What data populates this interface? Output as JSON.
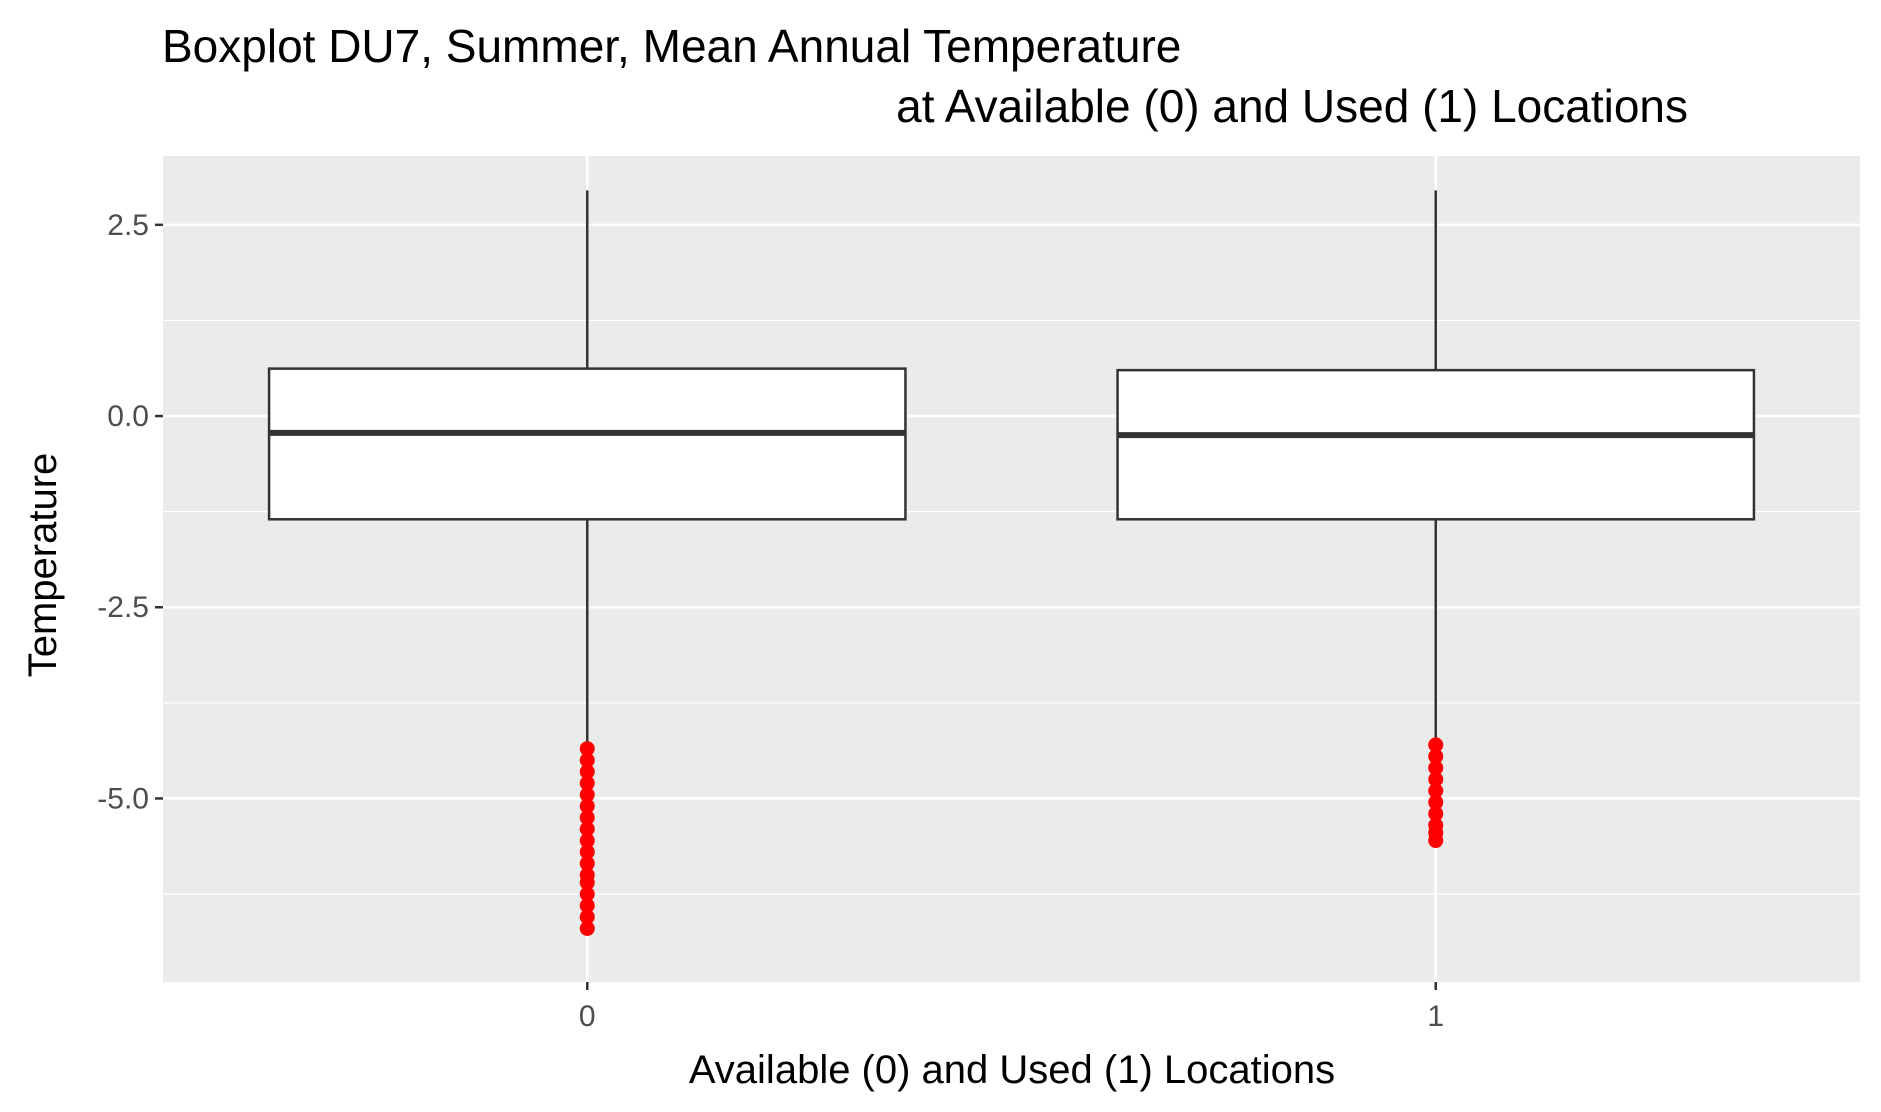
{
  "chart_data": {
    "type": "boxplot",
    "title_line1": "Boxplot DU7, Summer, Mean Annual Temperature",
    "title_line2": "at Available (0) and Used (1) Locations",
    "xlabel": "Available (0) and Used (1) Locations",
    "ylabel": "Temperature",
    "categories": [
      "0",
      "1"
    ],
    "ylim": [
      -7.4,
      3.4
    ],
    "yticks": [
      -5.0,
      -2.5,
      0.0,
      2.5
    ],
    "ytick_labels": [
      "-5.0",
      "-2.5",
      "0.0",
      "2.5"
    ],
    "grid": true,
    "boxes": [
      {
        "category": "0",
        "whisker_low": -4.3,
        "q1": -1.35,
        "median": -0.22,
        "q3": 0.62,
        "whisker_high": 2.95,
        "outliers": [
          -4.35,
          -4.5,
          -4.65,
          -4.8,
          -4.95,
          -5.1,
          -5.25,
          -5.4,
          -5.55,
          -5.7,
          -5.85,
          -6.0,
          -6.1,
          -6.25,
          -6.4,
          -6.55,
          -6.7
        ]
      },
      {
        "category": "1",
        "whisker_low": -4.25,
        "q1": -1.35,
        "median": -0.25,
        "q3": 0.6,
        "whisker_high": 2.95,
        "outliers": [
          -4.3,
          -4.45,
          -4.6,
          -4.75,
          -4.9,
          -5.05,
          -5.2,
          -5.35,
          -5.45,
          -5.55
        ]
      }
    ],
    "colors": {
      "panel_background": "#ebebeb",
      "grid": "#ffffff",
      "box_fill": "#ffffff",
      "box_stroke": "#333333",
      "outlier": "#ff0000"
    }
  }
}
